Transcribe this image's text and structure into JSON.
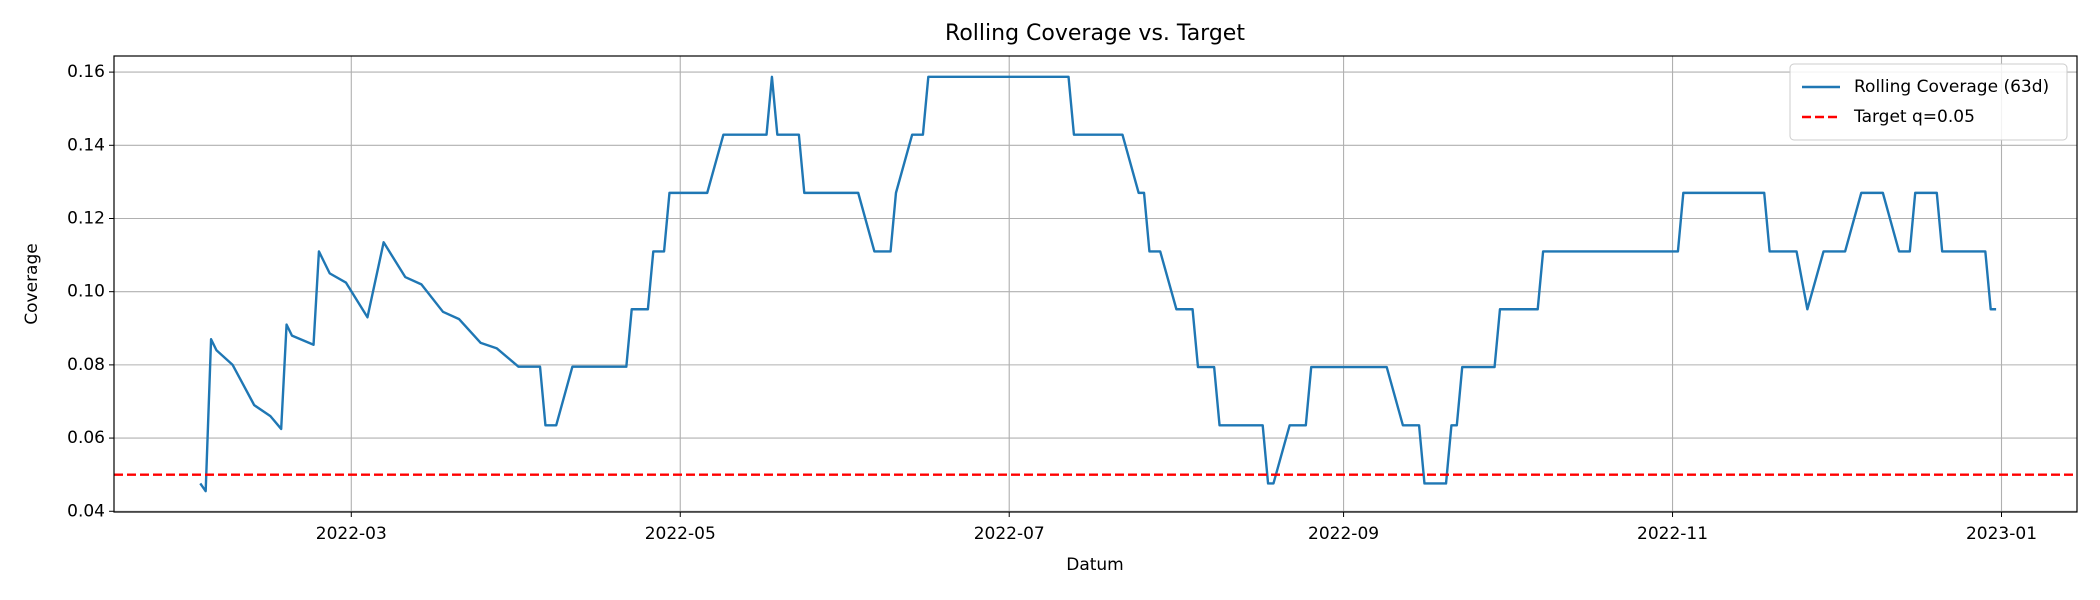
{
  "chart_data": {
    "type": "line",
    "title": "Rolling Coverage vs. Target",
    "xlabel": "Datum",
    "ylabel": "Coverage",
    "x": [
      32,
      33,
      34,
      35,
      38,
      42,
      45,
      47,
      48,
      49,
      53,
      54,
      56,
      59,
      63,
      66,
      70,
      73,
      77,
      80,
      84,
      87,
      91,
      95,
      96,
      98,
      101,
      111,
      112,
      115,
      116,
      118,
      119,
      126,
      129,
      137,
      138,
      139,
      143,
      144,
      154,
      157,
      160,
      161,
      164,
      166,
      167,
      193,
      194,
      203,
      206,
      207,
      208,
      210,
      213,
      216,
      217,
      220,
      221,
      229,
      230,
      231,
      234,
      237,
      238,
      252,
      255,
      258,
      259,
      263,
      264,
      265,
      266,
      272,
      273,
      280,
      281,
      306,
      307,
      322,
      323,
      328,
      330,
      333,
      337,
      340,
      344,
      347,
      349,
      350,
      354,
      355,
      363,
      364,
      365
    ],
    "series": [
      {
        "name": "Rolling Coverage (63d)",
        "color": "#1f77b4",
        "values": [
          0.0476,
          0.0455,
          0.087,
          0.084,
          0.08,
          0.069,
          0.066,
          0.0625,
          0.091,
          0.088,
          0.0855,
          0.111,
          0.105,
          0.1025,
          0.093,
          0.1135,
          0.104,
          0.102,
          0.0945,
          0.0925,
          0.086,
          0.0845,
          0.0795,
          0.0795,
          0.0635,
          0.0635,
          0.0795,
          0.0795,
          0.0952,
          0.0952,
          0.111,
          0.111,
          0.127,
          0.127,
          0.1429,
          0.1429,
          0.1587,
          0.1429,
          0.1429,
          0.127,
          0.127,
          0.111,
          0.111,
          0.127,
          0.1429,
          0.1429,
          0.1587,
          0.1587,
          0.1429,
          0.1429,
          0.127,
          0.127,
          0.111,
          0.111,
          0.0952,
          0.0952,
          0.0794,
          0.0794,
          0.0635,
          0.0635,
          0.0476,
          0.0476,
          0.0635,
          0.0635,
          0.0794,
          0.0794,
          0.0635,
          0.0635,
          0.0476,
          0.0476,
          0.0635,
          0.0635,
          0.0794,
          0.0794,
          0.0952,
          0.0952,
          0.111,
          0.111,
          0.127,
          0.127,
          0.111,
          0.111,
          0.0952,
          0.111,
          0.111,
          0.127,
          0.127,
          0.111,
          0.111,
          0.127,
          0.127,
          0.111,
          0.111,
          0.0952,
          0.0952
        ]
      }
    ],
    "hlines": [
      {
        "name": "Target q=0.05",
        "color": "#ff0000",
        "value": 0.05
      }
    ],
    "xlim": [
      16,
      380
    ],
    "xticks": [
      {
        "value": 60,
        "label": "2022-03"
      },
      {
        "value": 121,
        "label": "2022-05"
      },
      {
        "value": 182,
        "label": "2022-07"
      },
      {
        "value": 244,
        "label": "2022-09"
      },
      {
        "value": 305,
        "label": "2022-11"
      },
      {
        "value": 366,
        "label": "2023-01"
      }
    ],
    "ylim": [
      0.0398,
      0.1644
    ],
    "yticks": [
      0.04,
      0.06,
      0.08,
      {
        "value": 0.1,
        "label": "0.10"
      },
      0.12,
      0.14,
      0.16
    ],
    "grid": true,
    "legend": "upper right"
  }
}
